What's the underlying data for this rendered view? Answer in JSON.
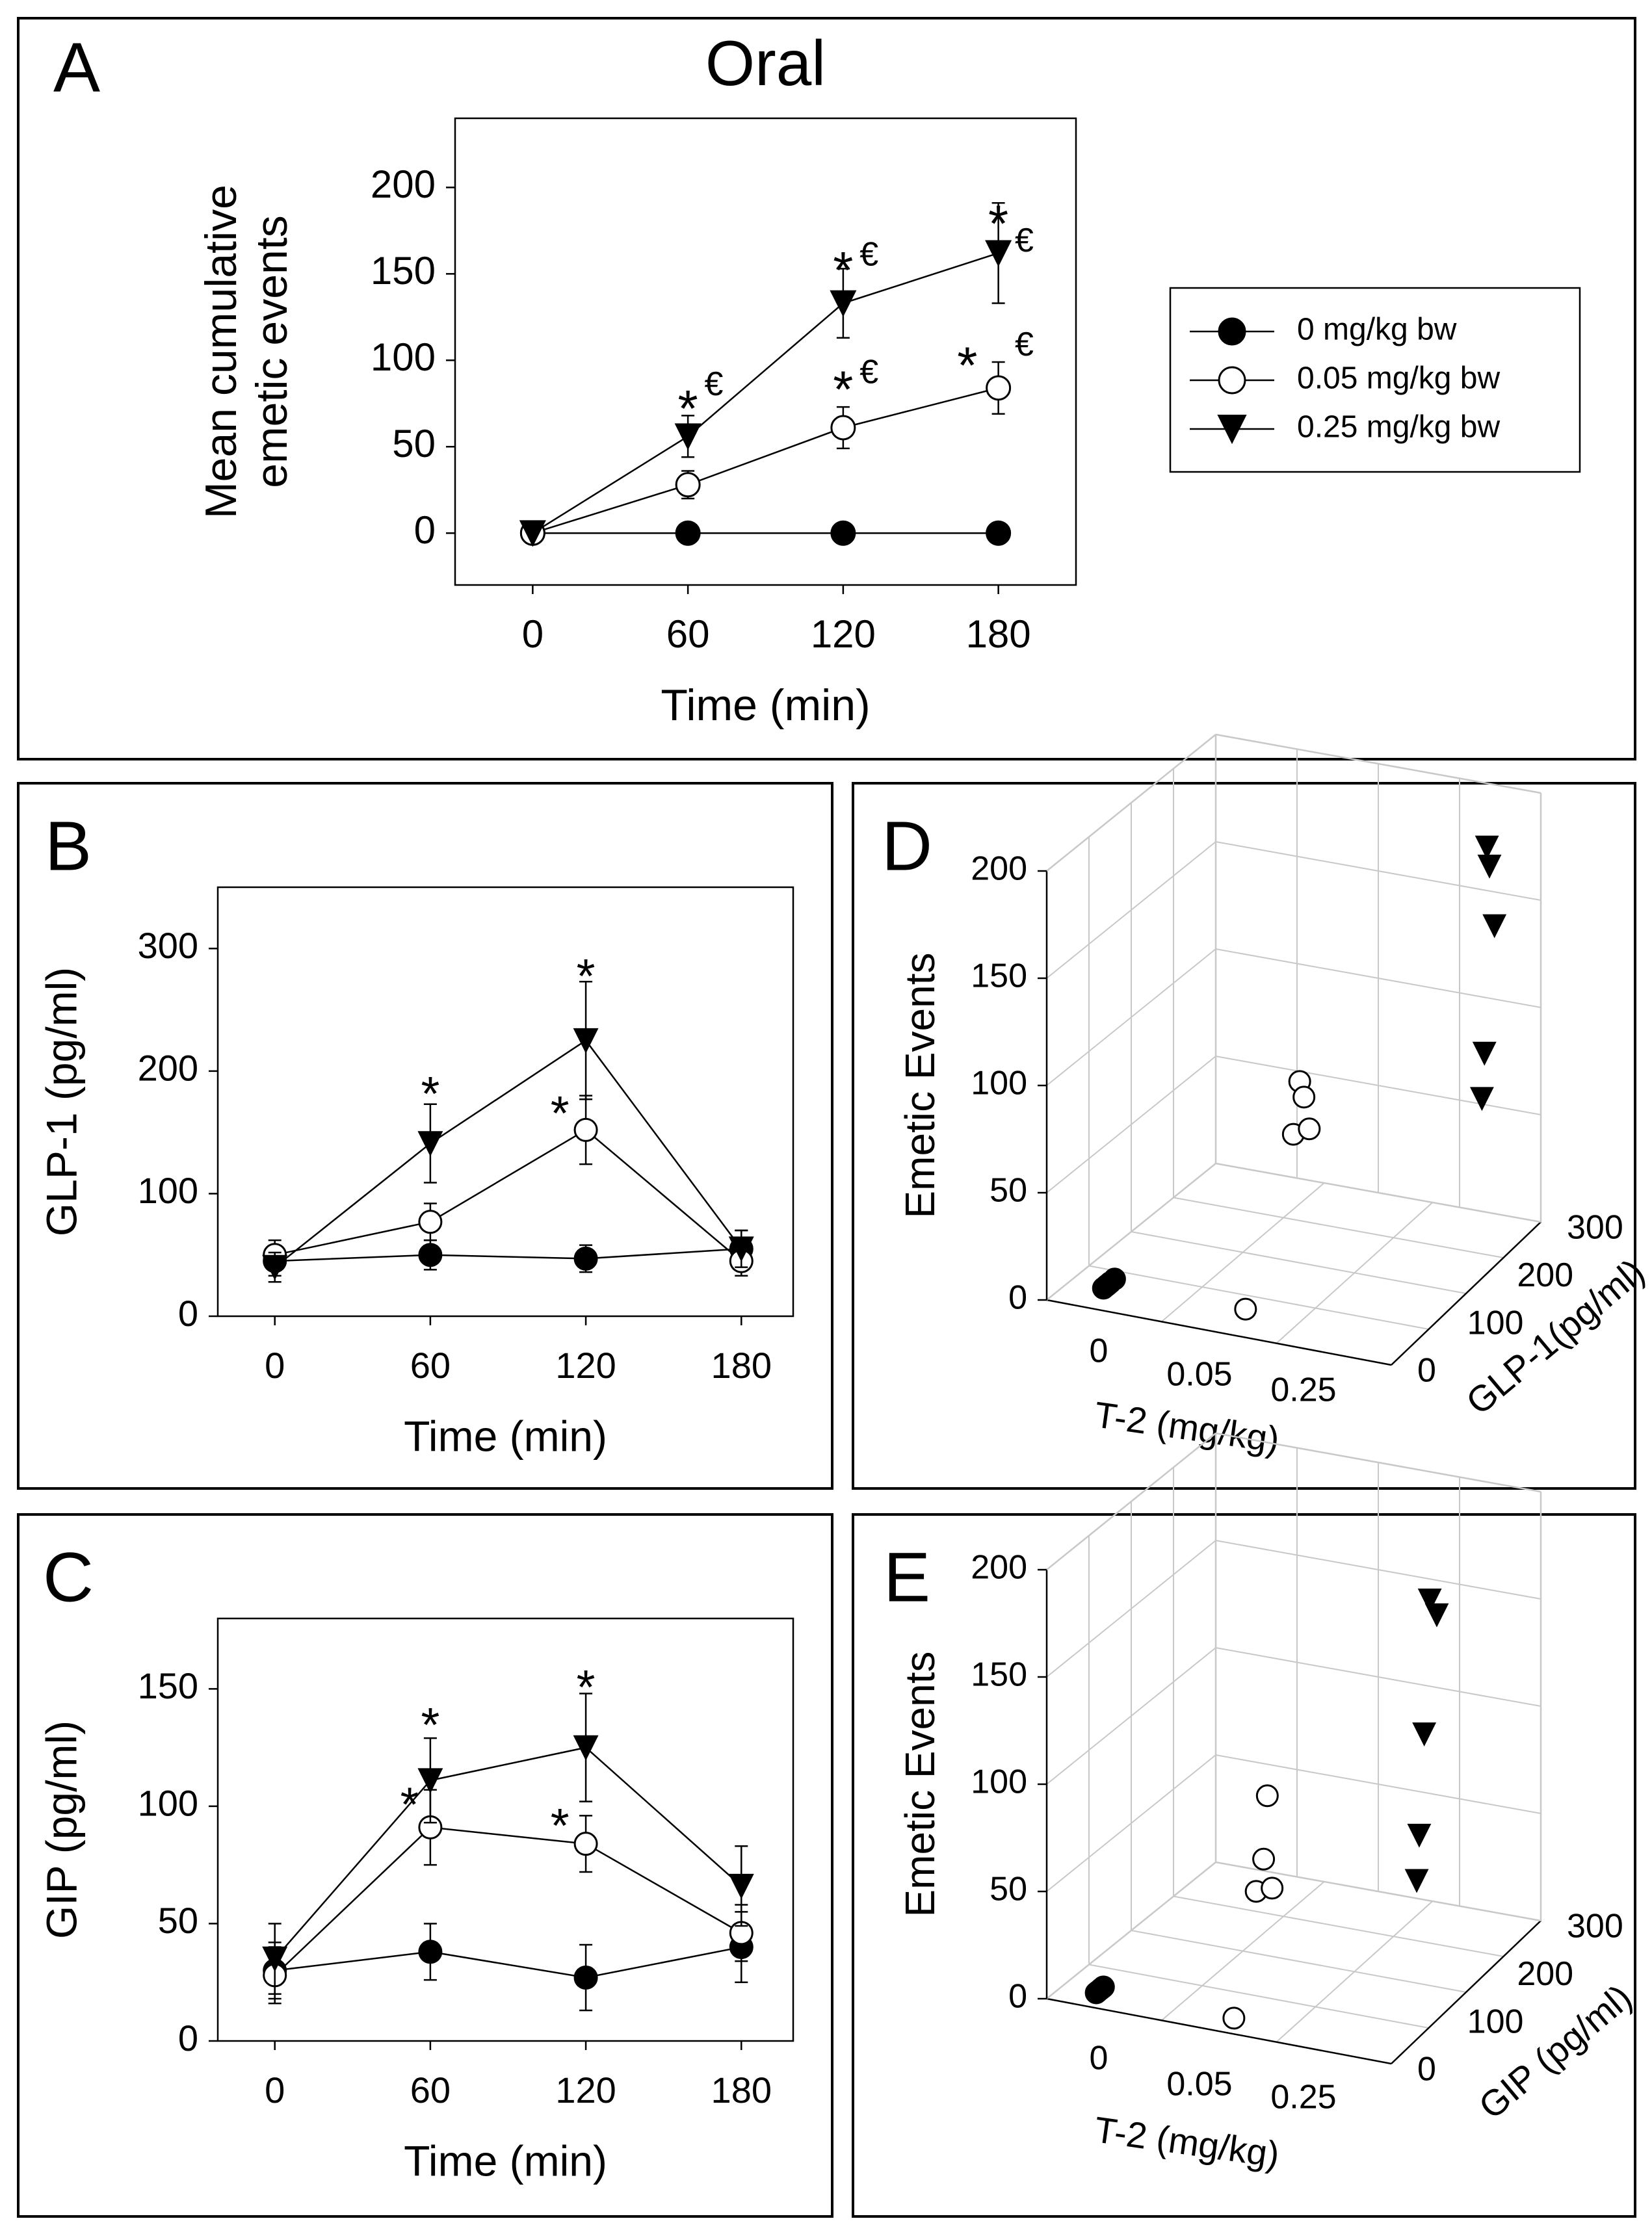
{
  "colors": {
    "ink": "#000000",
    "open_fill": "#ffffff",
    "grid": "#c8c8c8",
    "background": "#ffffff"
  },
  "chart_data": [
    {
      "panel": "A",
      "title": "Oral",
      "type": "line",
      "xlabel": "Time (min)",
      "ylabel": [
        "Mean cumulative",
        "emetic events"
      ],
      "x": [
        0,
        60,
        120,
        180
      ],
      "xlim": [
        -30,
        210
      ],
      "ylim": [
        -30,
        240
      ],
      "yticks": [
        0,
        50,
        100,
        150,
        200
      ],
      "grid": false,
      "legend": "right",
      "series": [
        {
          "name": "0 mg/kg bw",
          "marker": "filled-circle",
          "values": [
            0,
            0,
            0,
            0
          ],
          "err": [
            0,
            0,
            0,
            0
          ]
        },
        {
          "name": "0.05 mg/kg bw",
          "marker": "open-circle",
          "values": [
            0,
            28,
            61,
            84
          ],
          "err": [
            0,
            8,
            12,
            15
          ]
        },
        {
          "name": "0.25 mg/kg bw",
          "marker": "filled-triangle",
          "values": [
            0,
            56,
            133,
            162
          ],
          "err": [
            0,
            12,
            20,
            29
          ]
        }
      ],
      "annotations": [
        {
          "text": "*",
          "x": 60,
          "y": 75
        },
        {
          "text": "€",
          "x": 70,
          "y": 85
        },
        {
          "text": "*",
          "x": 120,
          "y": 155
        },
        {
          "text": "€",
          "x": 130,
          "y": 160
        },
        {
          "text": "*",
          "x": 180,
          "y": 182
        },
        {
          "text": "€",
          "x": 190,
          "y": 168
        },
        {
          "text": "*",
          "x": 120,
          "y": 86
        },
        {
          "text": "€",
          "x": 130,
          "y": 92
        },
        {
          "text": "*",
          "x": 168,
          "y": 100
        },
        {
          "text": "€",
          "x": 190,
          "y": 108
        }
      ]
    },
    {
      "panel": "B",
      "type": "line",
      "xlabel": "Time (min)",
      "ylabel": "GLP-1 (pg/ml)",
      "x": [
        0,
        60,
        120,
        180
      ],
      "xlim": [
        -22,
        200
      ],
      "ylim": [
        0,
        350
      ],
      "yticks": [
        0,
        100,
        200,
        300
      ],
      "grid": false,
      "series": [
        {
          "marker": "filled-circle",
          "values": [
            45,
            50,
            47,
            55
          ],
          "err": [
            12,
            12,
            11,
            15
          ]
        },
        {
          "marker": "open-circle",
          "values": [
            50,
            77,
            152,
            45
          ],
          "err": [
            12,
            15,
            28,
            12
          ]
        },
        {
          "marker": "filled-triangle",
          "values": [
            40,
            141,
            225,
            55
          ],
          "err": [
            12,
            32,
            48,
            15
          ]
        }
      ],
      "annotations": [
        {
          "text": "*",
          "x": 60,
          "y": 186
        },
        {
          "text": "*",
          "x": 120,
          "y": 282
        },
        {
          "text": "*",
          "x": 110,
          "y": 170
        }
      ]
    },
    {
      "panel": "C",
      "type": "line",
      "xlabel": "Time (min)",
      "ylabel": "GIP (pg/ml)",
      "x": [
        0,
        60,
        120,
        180
      ],
      "xlim": [
        -22,
        200
      ],
      "ylim": [
        0,
        180
      ],
      "yticks": [
        0,
        50,
        100,
        150
      ],
      "grid": false,
      "series": [
        {
          "marker": "filled-circle",
          "values": [
            30,
            38,
            27,
            40
          ],
          "err": [
            12,
            12,
            14,
            15
          ]
        },
        {
          "marker": "open-circle",
          "values": [
            28,
            91,
            84,
            46
          ],
          "err": [
            12,
            16,
            12,
            12
          ]
        },
        {
          "marker": "filled-triangle",
          "values": [
            35,
            111,
            125,
            66
          ],
          "err": [
            15,
            18,
            23,
            17
          ]
        }
      ],
      "annotations": [
        {
          "text": "*",
          "x": 60,
          "y": 137
        },
        {
          "text": "*",
          "x": 120,
          "y": 153
        },
        {
          "text": "*",
          "x": 52,
          "y": 103
        },
        {
          "text": "*",
          "x": 110,
          "y": 94
        }
      ]
    },
    {
      "panel": "D",
      "type": "scatter3d",
      "zlabel": "Emetic Events",
      "xlabel": "T-2 (mg/kg)",
      "ylabel": "GLP-1(pg/ml)",
      "zticks": [
        0,
        50,
        100,
        150,
        200
      ],
      "xticks": [
        "0",
        "0.05",
        "0.25"
      ],
      "yticks": [
        0,
        100,
        200,
        300
      ],
      "grid": true,
      "series": [
        {
          "marker": "filled-circle",
          "points": [
            [
              0,
              40,
              0
            ],
            [
              0,
              48,
              0
            ],
            [
              0,
              52,
              0
            ],
            [
              0,
              45,
              0
            ],
            [
              0,
              60,
              0
            ]
          ]
        },
        {
          "marker": "open-circle",
          "points": [
            [
              0.05,
              50,
              0
            ],
            [
              0.05,
              152,
              84
            ],
            [
              0.05,
              160,
              75
            ],
            [
              0.05,
              140,
              62
            ],
            [
              0.05,
              170,
              58
            ]
          ]
        },
        {
          "marker": "filled-triangle",
          "points": [
            [
              0.25,
              225,
              190
            ],
            [
              0.25,
              230,
              180
            ],
            [
              0.25,
              240,
              150
            ],
            [
              0.25,
              220,
              95
            ],
            [
              0.25,
              215,
              75
            ]
          ]
        }
      ]
    },
    {
      "panel": "E",
      "type": "scatter3d",
      "zlabel": "Emetic Events",
      "xlabel": "T-2 (mg/kg)",
      "ylabel": "GIP (pg/ml)",
      "zticks": [
        0,
        50,
        100,
        150,
        200
      ],
      "xticks": [
        "0",
        "0.05",
        "0.25"
      ],
      "yticks": [
        0,
        100,
        200,
        300
      ],
      "grid": true,
      "series": [
        {
          "marker": "filled-circle",
          "points": [
            [
              0,
              30,
              0
            ],
            [
              0,
              38,
              0
            ],
            [
              0,
              27,
              0
            ],
            [
              0,
              40,
              0
            ],
            [
              0,
              35,
              0
            ]
          ]
        },
        {
          "marker": "open-circle",
          "points": [
            [
              0.05,
              28,
              0
            ],
            [
              0.05,
              91,
              90
            ],
            [
              0.05,
              84,
              62
            ],
            [
              0.05,
              70,
              50
            ],
            [
              0.05,
              100,
              45
            ]
          ]
        },
        {
          "marker": "filled-triangle",
          "points": [
            [
              0.25,
              111,
              190
            ],
            [
              0.25,
              125,
              180
            ],
            [
              0.25,
              100,
              130
            ],
            [
              0.25,
              90,
              85
            ],
            [
              0.25,
              85,
              65
            ]
          ]
        }
      ]
    }
  ]
}
